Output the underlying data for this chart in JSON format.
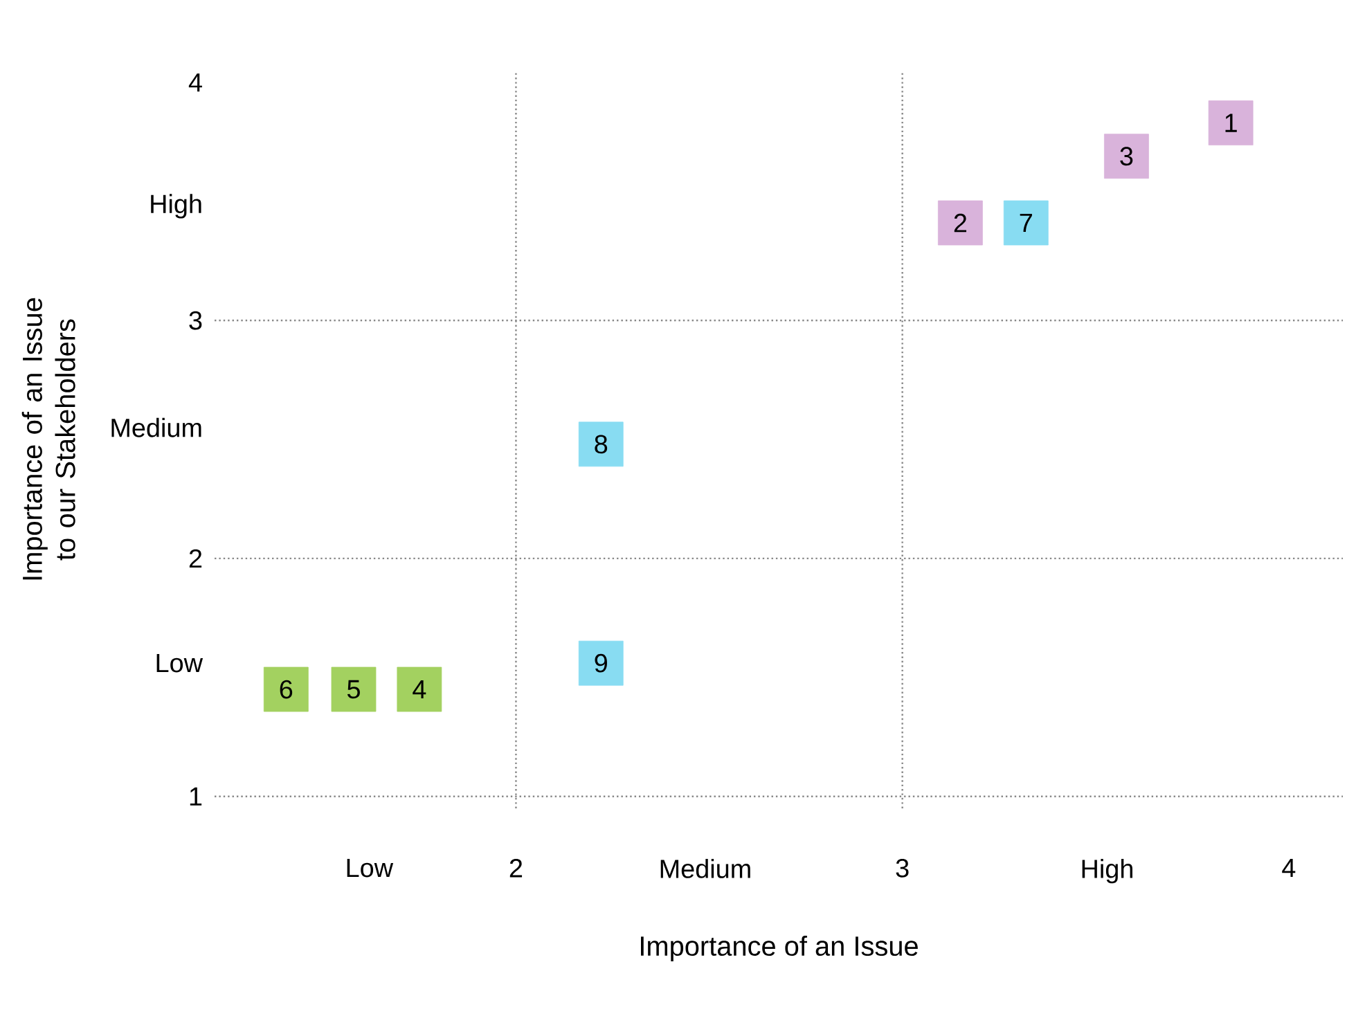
{
  "chart_data": {
    "type": "scatter",
    "xlabel": "Importance of an Issue",
    "ylabel": "Importance of an Issue to our Stakeholders",
    "marker": "square",
    "xlim": [
      1.22,
      4.14
    ],
    "ylim": [
      0.95,
      4.05
    ],
    "xticks": [
      {
        "value": 1.62,
        "label": "Low"
      },
      2,
      {
        "value": 2.49,
        "label": "Medium"
      },
      3,
      {
        "value": 3.53,
        "label": "High"
      },
      4
    ],
    "yticks": [
      1,
      {
        "value": 1.56,
        "label": "Low"
      },
      2,
      {
        "value": 2.55,
        "label": "Medium"
      },
      3,
      {
        "value": 3.48,
        "label": "High"
      },
      4
    ],
    "series": [
      {
        "color": "#d9b3db",
        "x": [
          3.85,
          3.15,
          3.58
        ],
        "values": [
          3.83,
          3.41,
          3.69
        ]
      },
      {
        "color": "#88dcf2",
        "x": [
          3.32,
          2.22,
          2.22
        ],
        "values": [
          3.41,
          2.48,
          1.56
        ]
      },
      {
        "color": "#a3d160",
        "x": [
          1.75,
          1.58,
          1.405
        ],
        "values": [
          1.45,
          1.45,
          1.45
        ]
      }
    ],
    "annotations": [
      {
        "text": "1",
        "x": 3.85,
        "y": 3.83
      },
      {
        "text": "2",
        "x": 3.15,
        "y": 3.41
      },
      {
        "text": "3",
        "x": 3.58,
        "y": 3.69
      },
      {
        "text": "7",
        "x": 3.32,
        "y": 3.41
      },
      {
        "text": "8",
        "x": 2.22,
        "y": 2.48
      },
      {
        "text": "9",
        "x": 2.22,
        "y": 1.56
      },
      {
        "text": "4",
        "x": 1.75,
        "y": 1.45
      },
      {
        "text": "5",
        "x": 1.58,
        "y": 1.45
      },
      {
        "text": "6",
        "x": 1.405,
        "y": 1.45
      }
    ],
    "ref_lines": [
      {
        "axis": "x",
        "value": 2,
        "color": "#888888",
        "line_style": "dotted"
      },
      {
        "axis": "x",
        "value": 3,
        "color": "#888888",
        "line_style": "dotted"
      },
      {
        "axis": "y",
        "value": 1,
        "color": "#888888",
        "line_style": "dotted"
      },
      {
        "axis": "y",
        "value": 2,
        "color": "#888888",
        "line_style": "dotted"
      },
      {
        "axis": "y",
        "value": 3,
        "color": "#888888",
        "line_style": "dotted"
      }
    ]
  }
}
